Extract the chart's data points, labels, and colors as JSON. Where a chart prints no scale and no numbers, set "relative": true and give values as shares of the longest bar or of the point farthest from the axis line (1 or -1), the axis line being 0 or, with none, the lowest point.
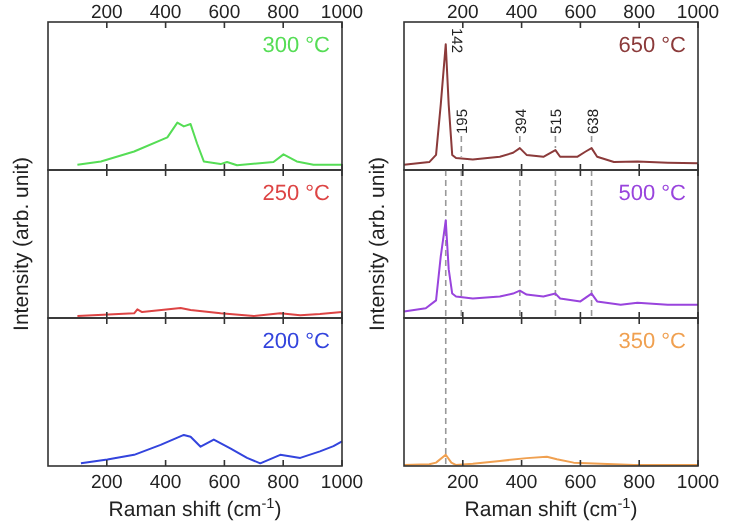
{
  "chart_data": [
    {
      "type": "line",
      "relative": true,
      "xlim": [
        0,
        1000
      ],
      "xticks": [
        200,
        400,
        600,
        800,
        1000
      ],
      "legend": "top right",
      "series": [
        {
          "name": "300 °C",
          "color": "#55dd55",
          "x": [
            100,
            180,
            293,
            406,
            440,
            462,
            485,
            507,
            530,
            587,
            609,
            643,
            767,
            801,
            846,
            903,
            1000
          ],
          "values": [
            0.11,
            0.18,
            0.39,
            0.69,
            1.0,
            0.92,
            0.97,
            0.56,
            0.18,
            0.125,
            0.17,
            0.1,
            0.17,
            0.33,
            0.18,
            0.11,
            0.11
          ]
        }
      ]
    },
    {
      "type": "line",
      "relative": true,
      "xlim": [
        0,
        1000
      ],
      "xticks": [
        200,
        400,
        600,
        800,
        1000
      ],
      "legend": "top right",
      "series": [
        {
          "name": "650 °C",
          "color": "#8b3a3a",
          "x": [
            0,
            86,
            109,
            125,
            142,
            152,
            164,
            177,
            234,
            326,
            371,
            394,
            417,
            474,
            515,
            531,
            589,
            618,
            638,
            657,
            714,
            794,
            897,
            1000
          ],
          "values": [
            0.042,
            0.063,
            0.12,
            0.52,
            1.0,
            0.52,
            0.12,
            0.095,
            0.084,
            0.105,
            0.137,
            0.174,
            0.12,
            0.105,
            0.158,
            0.105,
            0.105,
            0.147,
            0.174,
            0.105,
            0.063,
            0.068,
            0.058,
            0.053
          ]
        }
      ],
      "annotations": [
        {
          "text": "142",
          "x": 142,
          "y": 1.0
        },
        {
          "text": "195",
          "x": 195,
          "y": 0.09
        },
        {
          "text": "394",
          "x": 394,
          "y": 0.174
        },
        {
          "text": "515",
          "x": 515,
          "y": 0.158
        },
        {
          "text": "638",
          "x": 638,
          "y": 0.174
        }
      ]
    },
    {
      "type": "line",
      "relative": true,
      "xlim": [
        0,
        1000
      ],
      "xticks": [
        200,
        400,
        600,
        800,
        1000
      ],
      "tick_labels": false,
      "legend": "top right",
      "ylabel": "Intensity (arb. unit)",
      "series": [
        {
          "name": "250 °C",
          "color": "#dd4444",
          "x": [
            100,
            293,
            304,
            320,
            451,
            485,
            587,
            700,
            790,
            858,
            925,
            1000
          ],
          "values": [
            0.2,
            0.47,
            0.87,
            0.6,
            1.0,
            0.8,
            0.47,
            0.2,
            0.47,
            0.27,
            0.4,
            0.6
          ]
        }
      ]
    },
    {
      "type": "line",
      "relative": true,
      "xlim": [
        0,
        1000
      ],
      "xticks": [
        200,
        400,
        600,
        800,
        1000
      ],
      "tick_labels": false,
      "legend": "top right",
      "ylabel": "Intensity (arb. unit)",
      "series": [
        {
          "name": "500 °C",
          "color": "#9944dd",
          "x": [
            0,
            74,
            109,
            125,
            142,
            152,
            164,
            177,
            234,
            326,
            371,
            394,
            417,
            474,
            515,
            531,
            600,
            638,
            657,
            737,
            794,
            897,
            1000
          ],
          "values": [
            0.067,
            0.1,
            0.18,
            0.63,
            1.0,
            0.5,
            0.25,
            0.22,
            0.2,
            0.22,
            0.25,
            0.28,
            0.24,
            0.22,
            0.25,
            0.2,
            0.17,
            0.25,
            0.17,
            0.135,
            0.155,
            0.135,
            0.135
          ]
        }
      ],
      "ref_lines": [
        {
          "axis": "x",
          "value": 142,
          "color": "#999999",
          "line_style": "dashed"
        },
        {
          "axis": "x",
          "value": 195,
          "color": "#999999",
          "line_style": "dashed"
        },
        {
          "axis": "x",
          "value": 394,
          "color": "#999999",
          "line_style": "dashed"
        },
        {
          "axis": "x",
          "value": 515,
          "color": "#999999",
          "line_style": "dashed"
        },
        {
          "axis": "x",
          "value": 638,
          "color": "#999999",
          "line_style": "dashed"
        }
      ]
    },
    {
      "type": "line",
      "relative": true,
      "xlim": [
        0,
        1000
      ],
      "xticks": [
        200,
        400,
        600,
        800,
        1000
      ],
      "legend": "top right",
      "xlabel": "Raman shift (cm$^{-1}$)",
      "series": [
        {
          "name": "200 °C",
          "color": "#3344dd",
          "x": [
            112,
            202,
            293,
            383,
            462,
            485,
            519,
            564,
            620,
            677,
            722,
            790,
            858,
            925,
            971,
            1000
          ],
          "values": [
            0.085,
            0.21,
            0.36,
            0.68,
            1.0,
            0.94,
            0.62,
            0.85,
            0.57,
            0.26,
            0.085,
            0.36,
            0.26,
            0.47,
            0.64,
            0.79
          ]
        }
      ]
    },
    {
      "type": "line",
      "relative": true,
      "xlim": [
        0,
        1000
      ],
      "xticks": [
        200,
        400,
        600,
        800,
        1000
      ],
      "legend": "top right",
      "xlabel": "Raman shift (cm$^{-1}$)",
      "series": [
        {
          "name": "350 °C",
          "color": "#f0a050",
          "x": [
            0,
            86,
            109,
            142,
            161,
            176,
            234,
            326,
            417,
            486,
            520,
            577,
            669,
            783,
            1000
          ],
          "values": [
            0.1,
            0.15,
            0.3,
            1.0,
            0.3,
            0.1,
            0.2,
            0.45,
            0.7,
            0.82,
            0.6,
            0.3,
            0.2,
            0.1,
            0.1
          ]
        }
      ],
      "ref_lines": [
        {
          "axis": "x",
          "value": 142,
          "color": "#999999",
          "line_style": "dashed"
        }
      ]
    }
  ]
}
